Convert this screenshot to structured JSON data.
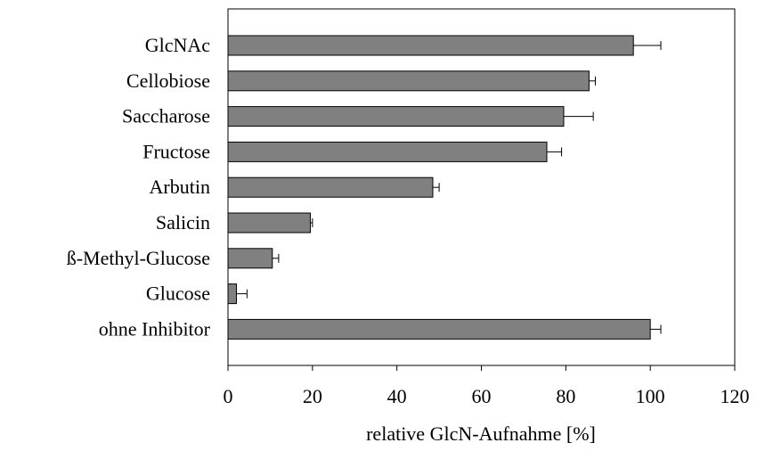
{
  "chart_data": {
    "type": "bar",
    "orientation": "horizontal",
    "categories": [
      "GlcNAc",
      "Cellobiose",
      "Saccharose",
      "Fructose",
      "Arbutin",
      "Salicin",
      "ß-Methyl-Glucose",
      "Glucose",
      "ohne Inhibitor"
    ],
    "values": [
      96,
      85.5,
      79.5,
      75.5,
      48.5,
      19.5,
      10.5,
      2,
      100
    ],
    "errors": [
      6.5,
      1.5,
      7,
      3.5,
      1.5,
      0.5,
      1.5,
      2.5,
      2.5
    ],
    "xlabel": "relative GlcN-Aufnahme [%]",
    "ylabel": "",
    "xlim": [
      0,
      120
    ],
    "xticks": [
      "0",
      "20",
      "40",
      "60",
      "80",
      "100",
      "120"
    ],
    "grid": false,
    "colors": {
      "bar": "#808080",
      "outline": "#000000"
    }
  }
}
